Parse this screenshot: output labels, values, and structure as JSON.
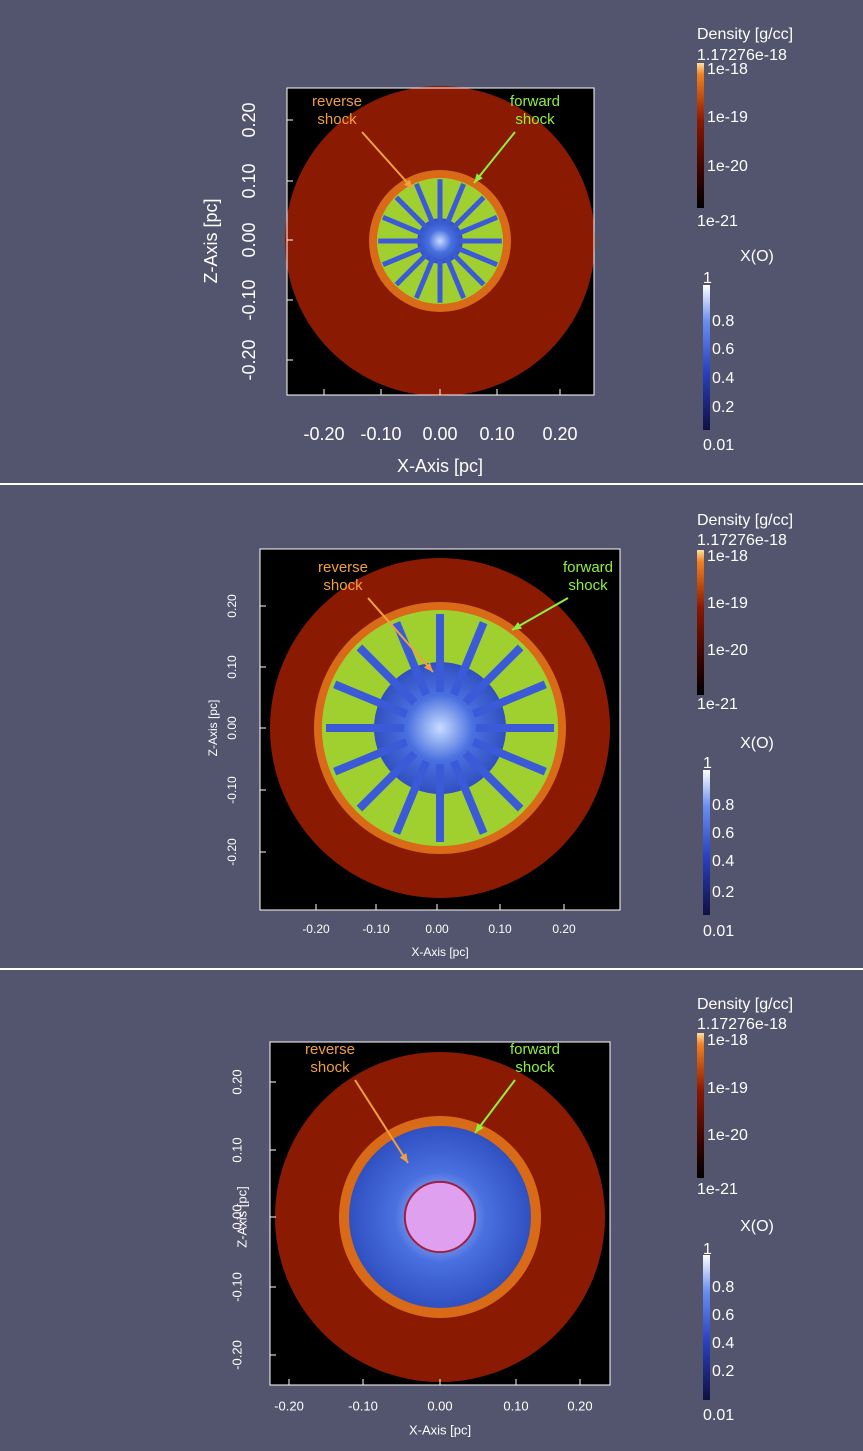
{
  "panels": [
    {
      "x_axis_label": "X-Axis [pc]",
      "z_axis_label": "Z-Axis [pc]",
      "x_ticks": [
        "-0.20",
        "-0.10",
        "0.00",
        "0.10",
        "0.20"
      ],
      "z_ticks": [
        "0.20",
        "0.10",
        "0.00",
        "-0.10",
        "-0.20"
      ],
      "annotations": [
        {
          "lines": [
            "reverse",
            "shock"
          ]
        },
        {
          "lines": [
            "forward",
            "shock"
          ]
        }
      ],
      "density_bar": {
        "title": "Density [g/cc]",
        "max": "1.17276e-18",
        "ticks": [
          "1e-18",
          "1e-19",
          "1e-20"
        ],
        "min": "1e-21"
      },
      "xo_bar": {
        "title": "X(O)",
        "max": "1",
        "ticks": [
          "0.8",
          "0.6",
          "0.4",
          "0.2"
        ],
        "min": "0.01"
      }
    },
    {
      "x_axis_label": "X-Axis [pc]",
      "z_axis_label": "Z-Axis [pc]",
      "x_ticks": [
        "-0.20",
        "-0.10",
        "0.00",
        "0.10",
        "0.20"
      ],
      "z_ticks": [
        "0.20",
        "0.10",
        "0.00",
        "-0.10",
        "-0.20"
      ],
      "annotations": [
        {
          "lines": [
            "reverse",
            "shock"
          ]
        },
        {
          "lines": [
            "forward",
            "shock"
          ]
        }
      ],
      "density_bar": {
        "title": "Density [g/cc]",
        "max": "1.17276e-18",
        "ticks": [
          "1e-18",
          "1e-19",
          "1e-20"
        ],
        "min": "1e-21"
      },
      "xo_bar": {
        "title": "X(O)",
        "max": "1",
        "ticks": [
          "0.8",
          "0.6",
          "0.4",
          "0.2"
        ],
        "min": "0.01"
      }
    },
    {
      "x_axis_label": "X-Axis [pc]",
      "z_axis_label": "Z-Axis [pc]",
      "x_ticks": [
        "-0.20",
        "-0.10",
        "0.00",
        "0.10",
        "0.20"
      ],
      "z_ticks": [
        "0.20",
        "0.10",
        "0.00",
        "-0.10",
        "-0.20"
      ],
      "annotations": [
        {
          "lines": [
            "reverse",
            "shock"
          ]
        },
        {
          "lines": [
            "forward",
            "shock"
          ]
        }
      ],
      "density_bar": {
        "title": "Density [g/cc]",
        "max": "1.17276e-18",
        "ticks": [
          "1e-18",
          "1e-19",
          "1e-20"
        ],
        "min": "1e-21"
      },
      "xo_bar": {
        "title": "X(O)",
        "max": "1",
        "ticks": [
          "0.8",
          "0.6",
          "0.4",
          "0.2"
        ],
        "min": "0.01"
      }
    }
  ]
}
